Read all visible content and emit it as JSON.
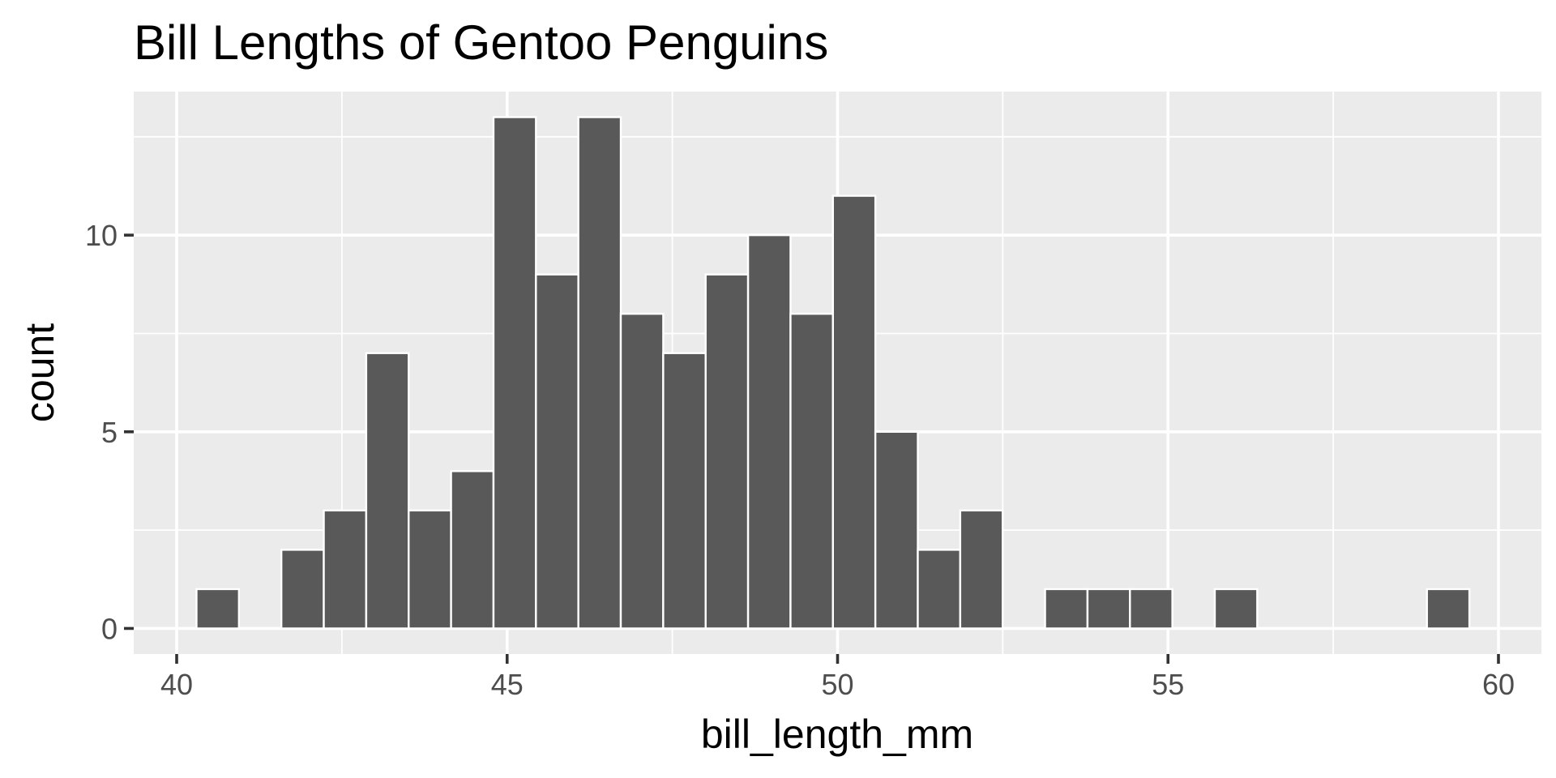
{
  "chart_data": {
    "type": "bar",
    "title": "Bill Lengths of Gentoo Penguins",
    "xlabel": "bill_length_mm",
    "ylabel": "count",
    "xlim": [
      39.35,
      60.65
    ],
    "ylim": [
      -0.65,
      13.65
    ],
    "x_ticks": [
      40,
      45,
      50,
      55,
      60
    ],
    "x_minor_ticks": [
      42.5,
      47.5,
      52.5,
      57.5
    ],
    "y_ticks": [
      0,
      5,
      10
    ],
    "y_minor_ticks": [
      2.5,
      7.5,
      12.5
    ],
    "grid": true,
    "bin_width": 0.642,
    "bins": [
      {
        "x0": 40.3,
        "x1": 40.942,
        "count": 1
      },
      {
        "x0": 40.942,
        "x1": 41.584,
        "count": 0
      },
      {
        "x0": 41.584,
        "x1": 42.226,
        "count": 2
      },
      {
        "x0": 42.226,
        "x1": 42.868,
        "count": 3
      },
      {
        "x0": 42.868,
        "x1": 43.51,
        "count": 7
      },
      {
        "x0": 43.51,
        "x1": 44.152,
        "count": 3
      },
      {
        "x0": 44.152,
        "x1": 44.794,
        "count": 4
      },
      {
        "x0": 44.794,
        "x1": 45.436,
        "count": 13
      },
      {
        "x0": 45.436,
        "x1": 46.078,
        "count": 9
      },
      {
        "x0": 46.078,
        "x1": 46.72,
        "count": 13
      },
      {
        "x0": 46.72,
        "x1": 47.362,
        "count": 8
      },
      {
        "x0": 47.362,
        "x1": 48.004,
        "count": 7
      },
      {
        "x0": 48.004,
        "x1": 48.646,
        "count": 9
      },
      {
        "x0": 48.646,
        "x1": 49.288,
        "count": 10
      },
      {
        "x0": 49.288,
        "x1": 49.93,
        "count": 8
      },
      {
        "x0": 49.93,
        "x1": 50.572,
        "count": 11
      },
      {
        "x0": 50.572,
        "x1": 51.214,
        "count": 5
      },
      {
        "x0": 51.214,
        "x1": 51.856,
        "count": 2
      },
      {
        "x0": 51.856,
        "x1": 52.498,
        "count": 3
      },
      {
        "x0": 52.498,
        "x1": 53.14,
        "count": 0
      },
      {
        "x0": 53.14,
        "x1": 53.782,
        "count": 1
      },
      {
        "x0": 53.782,
        "x1": 54.424,
        "count": 1
      },
      {
        "x0": 54.424,
        "x1": 55.066,
        "count": 1
      },
      {
        "x0": 55.066,
        "x1": 55.708,
        "count": 0
      },
      {
        "x0": 55.708,
        "x1": 56.35,
        "count": 1
      },
      {
        "x0": 56.35,
        "x1": 56.992,
        "count": 0
      },
      {
        "x0": 56.992,
        "x1": 57.634,
        "count": 0
      },
      {
        "x0": 57.634,
        "x1": 58.276,
        "count": 0
      },
      {
        "x0": 58.276,
        "x1": 58.918,
        "count": 0
      },
      {
        "x0": 58.918,
        "x1": 59.56,
        "count": 1
      }
    ],
    "colors": {
      "bar_fill": "#595959",
      "bar_outline": "#ffffff",
      "panel_background": "#ebebeb",
      "grid": "#ffffff",
      "tick_label": "#4d4d4d",
      "text": "#000000"
    }
  }
}
